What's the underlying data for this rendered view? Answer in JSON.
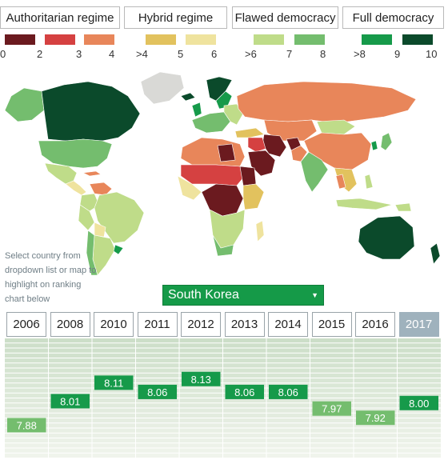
{
  "categories": [
    {
      "label": "Authoritarian regime"
    },
    {
      "label": "Hybrid regime"
    },
    {
      "label": "Flawed democracy"
    },
    {
      "label": "Full democracy"
    }
  ],
  "legend": {
    "swatches": [
      {
        "color": "#6b1a1f"
      },
      {
        "color": "#d54141"
      },
      {
        "color": "#e8865a"
      },
      {
        "color": "#e2c25e"
      },
      {
        "color": "#efe39e"
      },
      {
        "color": "#bfdc89"
      },
      {
        "color": "#74bd6e"
      },
      {
        "color": "#169a4a"
      },
      {
        "color": "#0b4a2b"
      }
    ],
    "ticks": [
      "0",
      "2",
      "3",
      "4",
      ">4",
      "5",
      "6",
      ">6",
      "7",
      "8",
      ">8",
      "9",
      "10"
    ]
  },
  "hint": "Select country from dropdown list or map to highlight on ranking chart below",
  "selector": {
    "value": "South Korea"
  },
  "years": [
    "2006",
    "2008",
    "2010",
    "2011",
    "2012",
    "2013",
    "2014",
    "2015",
    "2016",
    "2017"
  ],
  "selected_year": "2017",
  "chart_data": {
    "type": "table",
    "country": "South Korea",
    "x": [
      "2006",
      "2008",
      "2010",
      "2011",
      "2012",
      "2013",
      "2014",
      "2015",
      "2016",
      "2017"
    ],
    "values": [
      7.88,
      8.01,
      8.11,
      8.06,
      8.13,
      8.06,
      8.06,
      7.97,
      7.92,
      8.0
    ],
    "labels": [
      "7.88",
      "8.01",
      "8.11",
      "8.06",
      "8.13",
      "8.06",
      "8.06",
      "7.97",
      "7.92",
      "8.00"
    ],
    "ylim": [
      7.7,
      8.35
    ],
    "colors": {
      "above_8": "#169a4a",
      "below_8": "#74bd6e"
    }
  }
}
